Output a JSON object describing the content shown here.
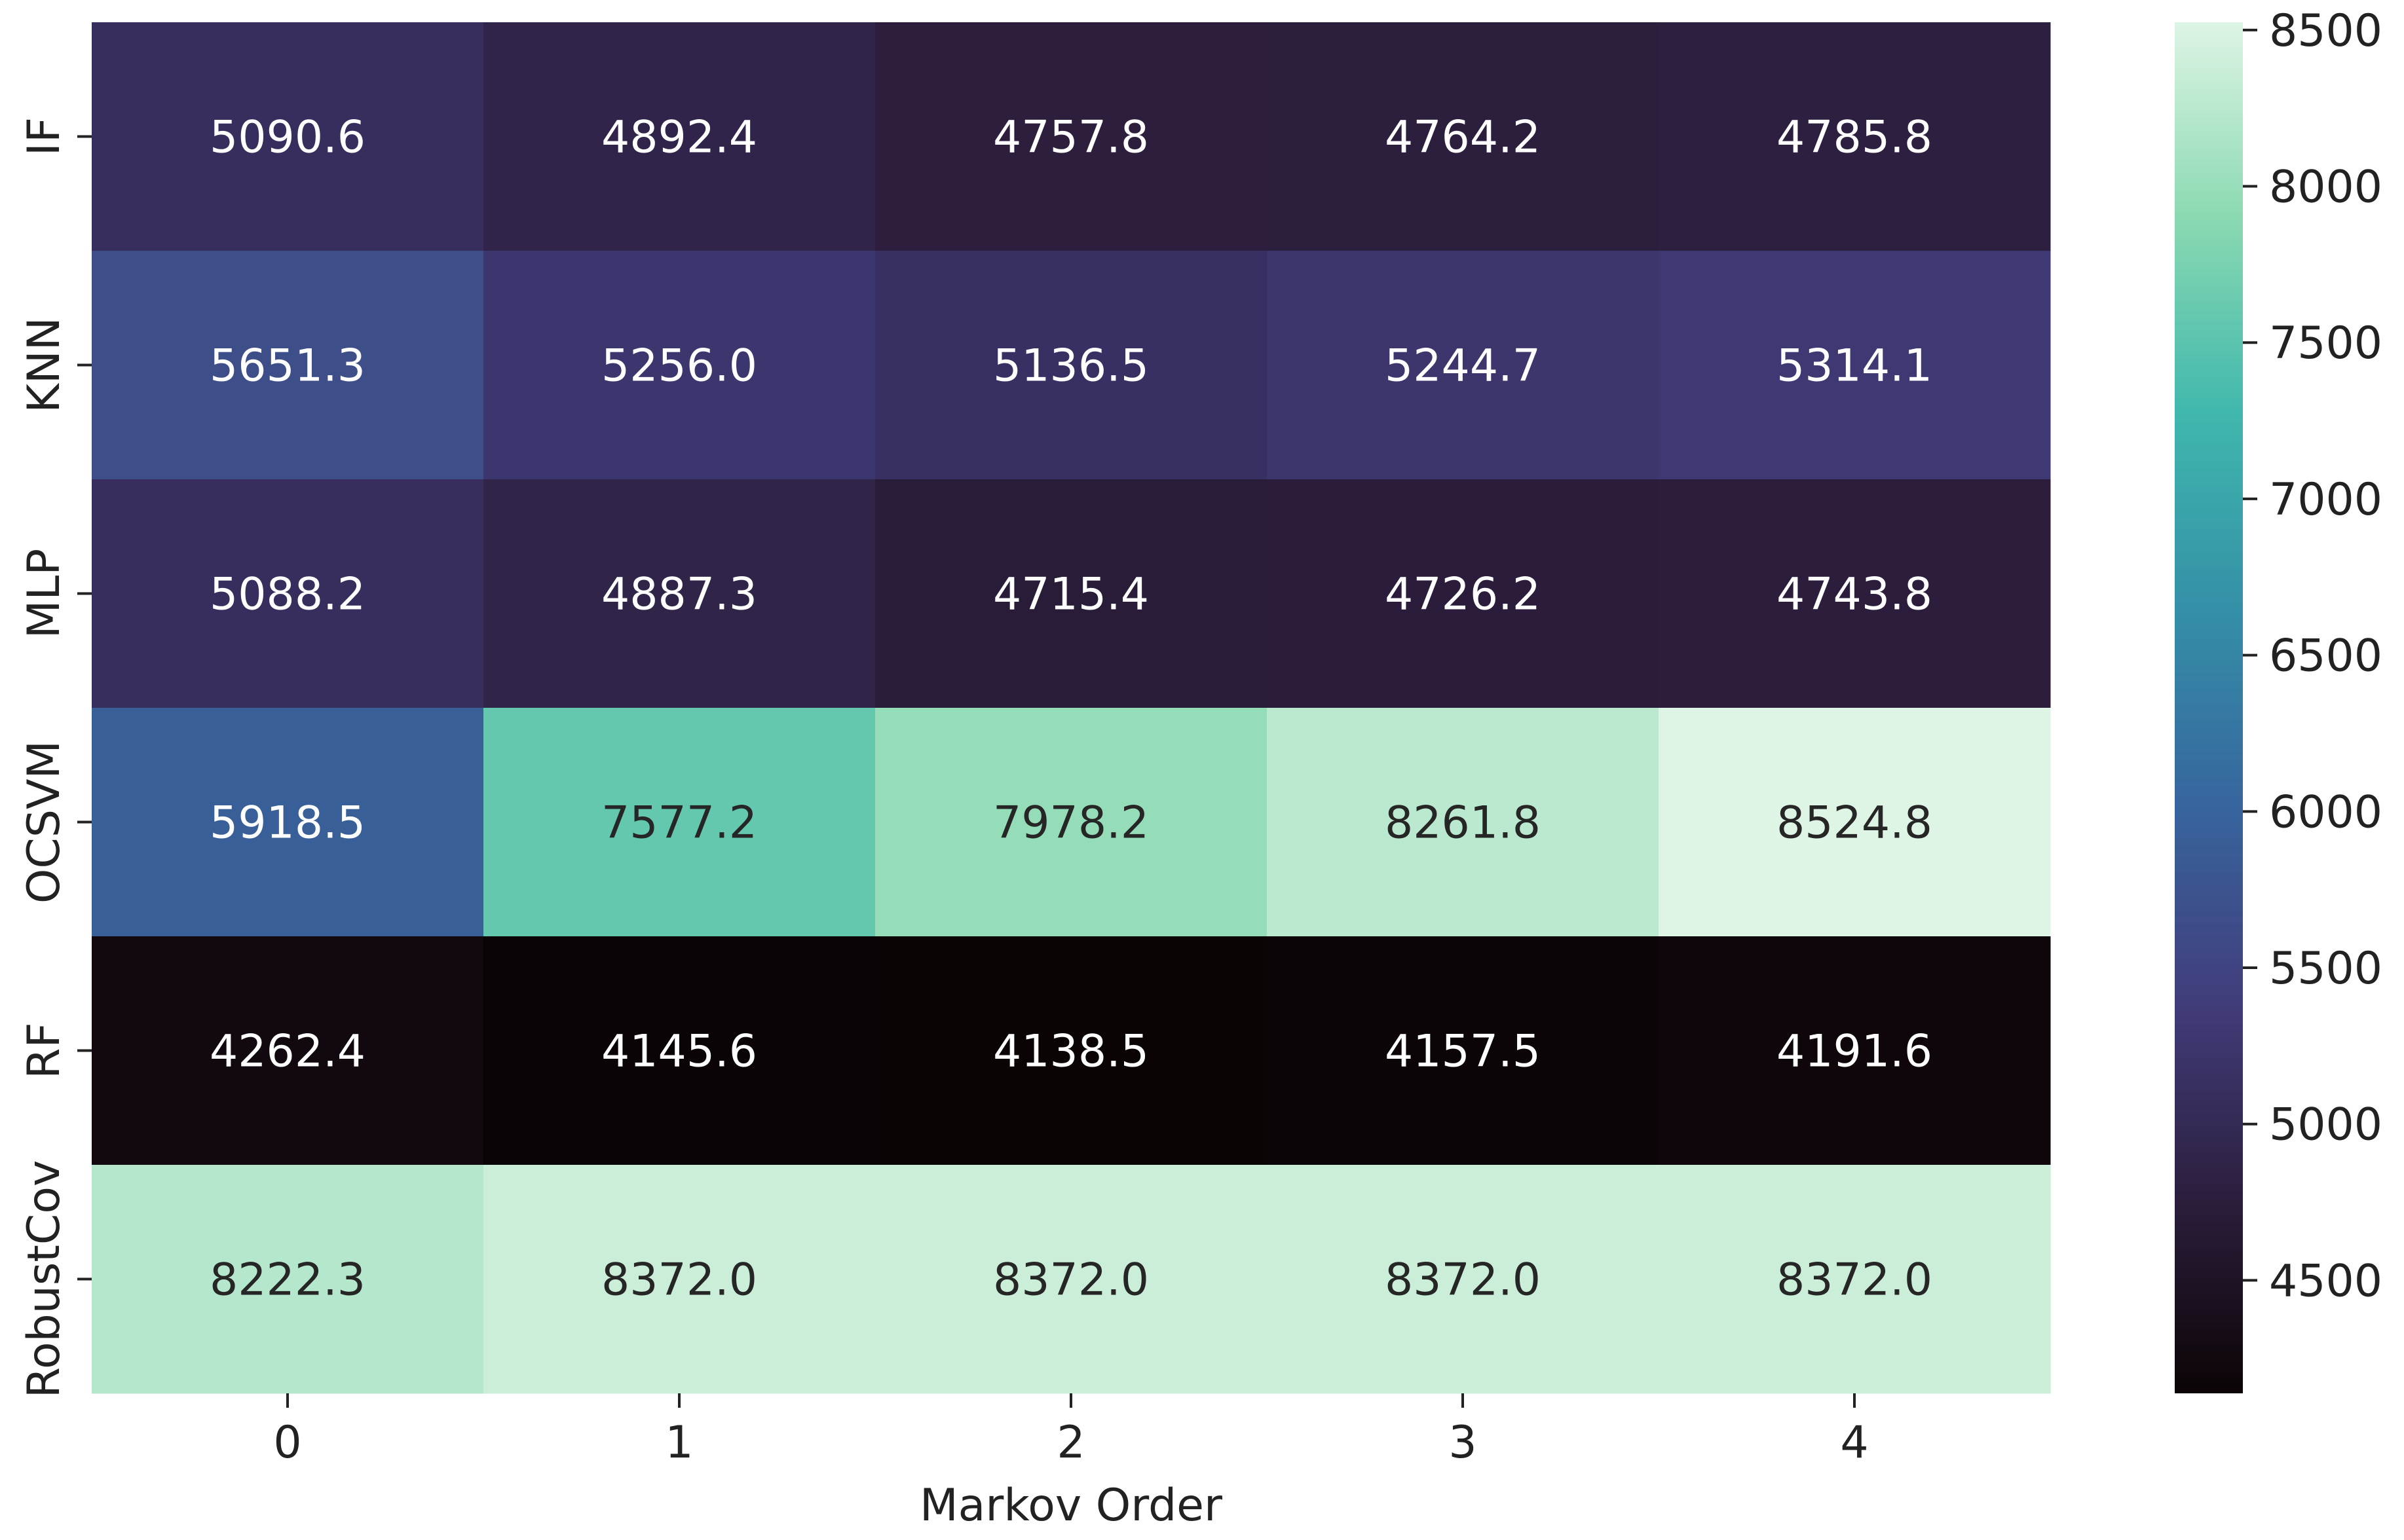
{
  "chart_data": {
    "type": "heatmap",
    "title": "",
    "xlabel": "Markov Order",
    "ylabel": "",
    "x_categories": [
      "0",
      "1",
      "2",
      "3",
      "4"
    ],
    "y_categories": [
      "IF",
      "KNN",
      "MLP",
      "OCSVM",
      "RF",
      "RobustCov"
    ],
    "values": [
      [
        5090.6,
        4892.4,
        4757.8,
        4764.2,
        4785.8
      ],
      [
        5651.3,
        5256.0,
        5136.5,
        5244.7,
        5314.1
      ],
      [
        5088.2,
        4887.3,
        4715.4,
        4726.2,
        4743.8
      ],
      [
        5918.5,
        7577.2,
        7978.2,
        8261.8,
        8524.8
      ],
      [
        4262.4,
        4145.6,
        4138.5,
        4157.5,
        4191.6
      ],
      [
        8222.3,
        8372.0,
        8372.0,
        8372.0,
        8372.0
      ]
    ],
    "value_labels": [
      [
        "5090.6",
        "4892.4",
        "4757.8",
        "4764.2",
        "4785.8"
      ],
      [
        "5651.3",
        "5256.0",
        "5136.5",
        "5244.7",
        "5314.1"
      ],
      [
        "5088.2",
        "4887.3",
        "4715.4",
        "4726.2",
        "4743.8"
      ],
      [
        "5918.5",
        "7577.2",
        "7978.2",
        "8261.8",
        "8524.8"
      ],
      [
        "4262.4",
        "4145.6",
        "4138.5",
        "4157.5",
        "4191.6"
      ],
      [
        "8222.3",
        "8372.0",
        "8372.0",
        "8372.0",
        "8372.0"
      ]
    ],
    "colorbar": {
      "colormap": "mako",
      "range": [
        4138.5,
        8524.8
      ],
      "ticks": [
        4500,
        5000,
        5500,
        6000,
        6500,
        7000,
        7500,
        8000,
        8500
      ],
      "tick_labels": [
        "4500",
        "5000",
        "5500",
        "6000",
        "6500",
        "7000",
        "7500",
        "8000",
        "8500"
      ],
      "stops": [
        "#0b0405",
        "#2c1e3d",
        "#413d7b",
        "#37659e",
        "#348fa7",
        "#40b7ad",
        "#8ad9b1",
        "#def5e5"
      ]
    },
    "grid": false,
    "legend": "colorbar-right"
  }
}
